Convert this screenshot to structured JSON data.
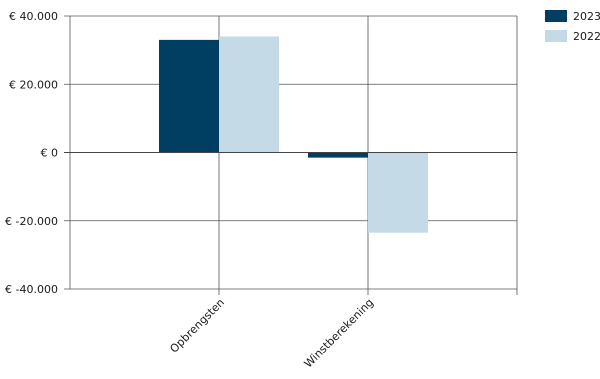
{
  "chart_data": {
    "type": "bar",
    "categories": [
      "Opbrengsten",
      "Winstberekening"
    ],
    "series": [
      {
        "name": "2023",
        "values": [
          33000,
          -1500
        ],
        "color": "#003f61"
      },
      {
        "name": "2022",
        "values": [
          34000,
          -23500
        ],
        "color": "#c5dae7"
      }
    ],
    "title": "",
    "xlabel": "",
    "ylabel": "",
    "ylim": [
      -40000,
      40000
    ],
    "yticks": [
      40000,
      20000,
      0,
      -20000,
      -40000
    ],
    "ytick_labels": [
      "€ 40.000",
      "€ 20.000",
      "€ 0",
      "€ -20.000",
      "€ -40.000"
    ],
    "grid": true,
    "legend_position": "top-right"
  }
}
